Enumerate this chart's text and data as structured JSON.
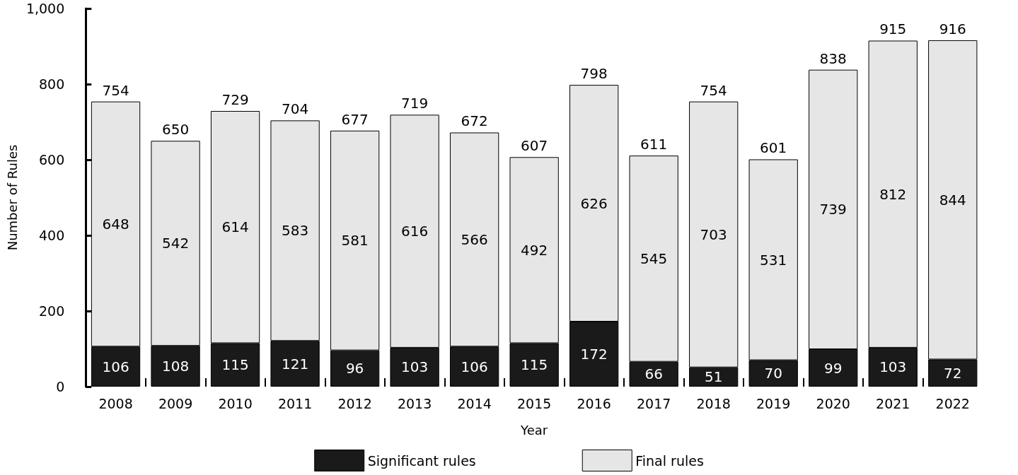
{
  "chart_data": {
    "type": "bar",
    "stacked": true,
    "xlabel": "Year",
    "ylabel": "Number of Rules",
    "categories": [
      "2008",
      "2009",
      "2010",
      "2011",
      "2012",
      "2013",
      "2014",
      "2015",
      "2016",
      "2017",
      "2018",
      "2019",
      "2020",
      "2021",
      "2022"
    ],
    "series": [
      {
        "name": "Significant rules",
        "color": "#1a1a1a",
        "values": [
          106,
          108,
          115,
          121,
          96,
          103,
          106,
          115,
          172,
          66,
          51,
          70,
          99,
          103,
          72
        ]
      },
      {
        "name": "Final rules",
        "color": "#e6e6e6",
        "values": [
          648,
          542,
          614,
          583,
          581,
          616,
          566,
          492,
          626,
          545,
          703,
          531,
          739,
          812,
          844
        ]
      }
    ],
    "totals": [
      "754",
      "650",
      "729",
      "704",
      "677",
      "719",
      "672",
      "607",
      "798",
      "611",
      "754",
      "601",
      "838",
      "915",
      "916"
    ],
    "ylim": [
      0,
      1000
    ],
    "yticks": [
      0,
      200,
      400,
      600,
      800,
      {
        "value": 1000,
        "label": "1,000"
      }
    ],
    "data_labels": true,
    "grid": false,
    "legend": "bottom"
  }
}
